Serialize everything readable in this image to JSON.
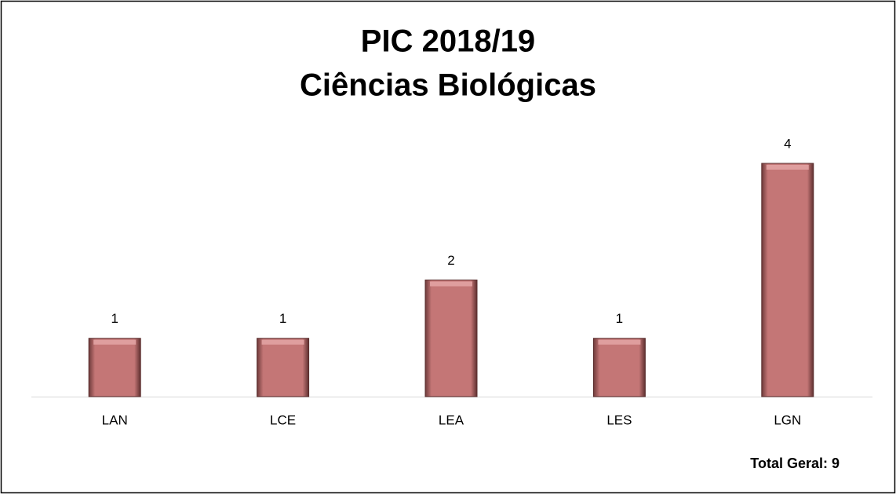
{
  "chart_data": {
    "type": "bar",
    "title": [
      "PIC 2018/19",
      "Ciências Biológicas"
    ],
    "categories": [
      "LAN",
      "LCE",
      "LEA",
      "LES",
      "LGN"
    ],
    "values": [
      1,
      1,
      2,
      1,
      4
    ],
    "color": "#c47676",
    "annotation": "Total Geral: 9"
  }
}
